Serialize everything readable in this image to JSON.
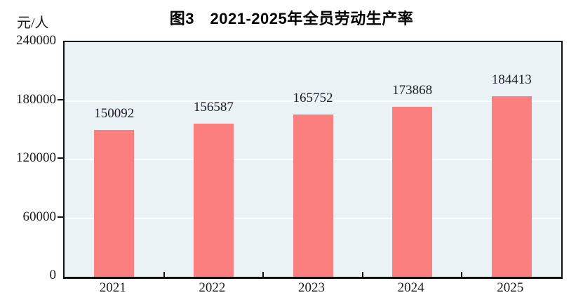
{
  "title": "图3　2021-2025年全员劳动生产率",
  "chart_data": {
    "type": "bar",
    "title": "图3　2021-2025年全员劳动生产率",
    "categories": [
      "2021",
      "2022",
      "2023",
      "2024",
      "2025"
    ],
    "values": [
      150092,
      156587,
      165752,
      173868,
      184413
    ],
    "data_labels": [
      "150092",
      "156587",
      "165752",
      "173868",
      "184413"
    ],
    "xlabel": "",
    "ylabel": "元/人",
    "ylim": [
      0,
      240000
    ],
    "yticks": [
      0,
      60000,
      120000,
      180000,
      240000
    ],
    "ytick_labels": [
      "0",
      "60000",
      "120000",
      "180000",
      "240000"
    ],
    "grid": true,
    "legend": "none",
    "colors": {
      "bar_fill": "#FB7F7F",
      "plot_background": "#EBF2F6",
      "gridline": "#FDFEFE",
      "axis": "#121212",
      "text": "#1a1a1a"
    }
  }
}
